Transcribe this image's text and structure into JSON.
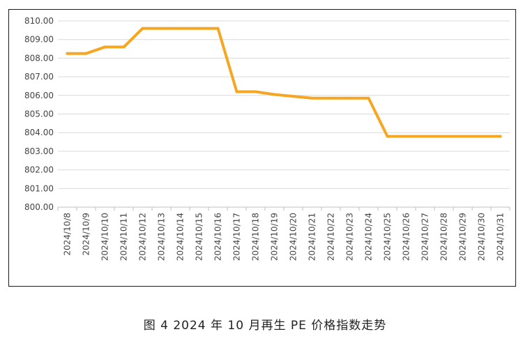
{
  "caption": "图 4  2024 年 10 月再生 PE 价格指数走势",
  "chart_data": {
    "type": "line",
    "categories": [
      "2024/10/8",
      "2024/10/9",
      "2024/10/10",
      "2024/10/11",
      "2024/10/12",
      "2024/10/13",
      "2024/10/14",
      "2024/10/15",
      "2024/10/16",
      "2024/10/17",
      "2024/10/18",
      "2024/10/19",
      "2024/10/20",
      "2024/10/21",
      "2024/10/22",
      "2024/10/23",
      "2024/10/24",
      "2024/10/25",
      "2024/10/26",
      "2024/10/27",
      "2024/10/28",
      "2024/10/29",
      "2024/10/30",
      "2024/10/31"
    ],
    "series": [
      {
        "values": [
          808.25,
          808.25,
          808.6,
          808.6,
          809.6,
          809.6,
          809.6,
          809.6,
          809.6,
          806.2,
          806.2,
          806.05,
          805.95,
          805.85,
          805.85,
          805.85,
          805.85,
          803.8,
          803.8,
          803.8,
          803.8,
          803.8,
          803.8,
          803.8
        ],
        "color": "#F5A623"
      }
    ],
    "ylim": [
      800,
      810
    ],
    "y_ticks": [
      "800.00",
      "801.00",
      "802.00",
      "803.00",
      "804.00",
      "805.00",
      "806.00",
      "807.00",
      "808.00",
      "809.00",
      "810.00"
    ],
    "grid": true,
    "legend": "none",
    "title": "",
    "xlabel": "",
    "ylabel": ""
  }
}
